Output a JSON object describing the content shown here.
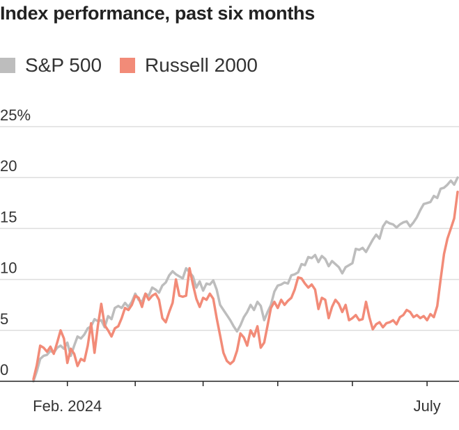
{
  "chart_data": {
    "type": "line",
    "title": "Index performance, past six months",
    "xlabel": "",
    "ylabel": "",
    "ylim": [
      0,
      25
    ],
    "yticks": [
      0,
      5,
      10,
      15,
      20,
      25
    ],
    "ytick_labels": [
      "0",
      "5",
      "10",
      "15",
      "20",
      "25%"
    ],
    "xlim": [
      0,
      125
    ],
    "xtick_positions": [
      10,
      30,
      50,
      72,
      94,
      116
    ],
    "xtick_labels": [
      {
        "pos": 10,
        "text": "Feb. 2024"
      },
      {
        "pos": 116,
        "text": "July"
      }
    ],
    "grid": true,
    "legend_position": "top-left",
    "series": [
      {
        "name": "S&P 500",
        "color": "#bdbdbd",
        "values": [
          0.0,
          1.0,
          2.2,
          2.5,
          2.6,
          3.0,
          2.8,
          3.3,
          3.5,
          3.2,
          3.8,
          2.5,
          3.5,
          4.4,
          4.2,
          4.6,
          5.2,
          5.4,
          6.1,
          5.9,
          6.0,
          5.3,
          6.4,
          6.1,
          7.2,
          7.4,
          7.2,
          7.7,
          7.3,
          7.8,
          8.6,
          8.0,
          7.8,
          8.6,
          8.4,
          9.2,
          9.0,
          8.7,
          9.4,
          9.7,
          10.4,
          10.8,
          10.5,
          10.3,
          10.1,
          11.1,
          10.7,
          10.3,
          9.2,
          9.8,
          8.9,
          9.6,
          9.5,
          9.9,
          9.0,
          7.5,
          7.0,
          6.5,
          6.0,
          5.4,
          4.9,
          5.5,
          6.3,
          6.8,
          7.5,
          7.0,
          7.8,
          7.4,
          6.0,
          6.8,
          7.5,
          8.8,
          9.4,
          9.5,
          9.7,
          9.6,
          10.4,
          10.5,
          10.7,
          11.5,
          11.4,
          12.2,
          12.1,
          12.4,
          11.7,
          12.3,
          12.0,
          11.3,
          11.8,
          11.5,
          11.2,
          10.6,
          11.2,
          11.4,
          11.6,
          13.0,
          12.9,
          13.1,
          12.7,
          13.3,
          13.9,
          14.4,
          14.0,
          15.2,
          15.7,
          15.5,
          15.4,
          15.1,
          15.4,
          15.6,
          15.7,
          15.2,
          15.6,
          16.1,
          16.8,
          17.4,
          17.5,
          17.6,
          18.2,
          18.0,
          18.9,
          19.0,
          19.3,
          19.7,
          19.3,
          20.0
        ]
      },
      {
        "name": "Russell 2000",
        "color": "#f28b78",
        "values": [
          0.2,
          1.6,
          3.5,
          3.3,
          2.9,
          3.4,
          2.7,
          3.8,
          5.0,
          4.2,
          1.8,
          3.2,
          2.7,
          1.5,
          2.2,
          2.0,
          3.5,
          5.7,
          2.8,
          5.5,
          7.6,
          5.5,
          5.0,
          4.4,
          5.2,
          5.4,
          6.2,
          7.2,
          7.0,
          7.5,
          8.4,
          8.2,
          7.3,
          8.6,
          8.0,
          8.4,
          8.6,
          8.0,
          6.2,
          5.8,
          6.8,
          7.7,
          10.0,
          8.4,
          8.3,
          8.4,
          11.1,
          9.5,
          8.1,
          7.3,
          8.2,
          8.0,
          8.6,
          8.1,
          6.2,
          4.5,
          2.8,
          2.0,
          1.7,
          2.0,
          3.0,
          4.7,
          4.3,
          3.5,
          5.0,
          4.4,
          5.4,
          3.3,
          3.8,
          5.5,
          7.2,
          7.8,
          7.2,
          8.0,
          7.5,
          7.9,
          8.2,
          9.0,
          10.2,
          10.1,
          9.6,
          9.2,
          9.5,
          9.0,
          7.1,
          8.2,
          8.0,
          6.2,
          7.3,
          8.0,
          7.6,
          6.8,
          7.5,
          6.0,
          6.2,
          6.5,
          6.0,
          6.1,
          7.8,
          6.3,
          5.1,
          5.6,
          5.8,
          5.3,
          5.7,
          5.8,
          6.0,
          5.6,
          6.3,
          6.5,
          7.0,
          6.8,
          6.3,
          6.5,
          6.2,
          6.4,
          6.0,
          6.6,
          6.3,
          7.4,
          10.0,
          12.5,
          14.0,
          15.0,
          16.0,
          18.6
        ]
      }
    ]
  }
}
